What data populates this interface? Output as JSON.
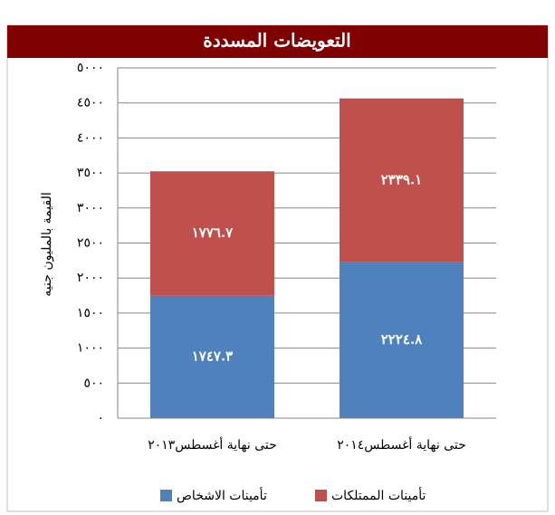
{
  "chart_data": {
    "type": "stacked_bar",
    "title": "التعويضات المسددة",
    "ylabel": "القيمة بالمليون جنيه",
    "categories": [
      "حتى نهاية أغسطس٢٠١٣",
      "حتى نهاية أغسطس٢٠١٤"
    ],
    "series": [
      {
        "name": "تأمينات الاشخاص",
        "color": "#4f81bd",
        "values": [
          1747.3,
          2224.8
        ],
        "value_labels": [
          "١٧٤٧.٣",
          "٢٢٢٤.٨"
        ]
      },
      {
        "name": "تأمينات الممتلكات",
        "color": "#c0504d",
        "values": [
          1776.7,
          2339.1
        ],
        "value_labels": [
          "١٧٧٦.٧",
          "٢٣٣٩.١"
        ]
      }
    ],
    "ylim": [
      0,
      5000
    ],
    "yticks": [
      {
        "value": 0,
        "label": "٠"
      },
      {
        "value": 500,
        "label": "٥٠٠"
      },
      {
        "value": 1000,
        "label": "١٠٠٠"
      },
      {
        "value": 1500,
        "label": "١٥٠٠"
      },
      {
        "value": 2000,
        "label": "٢٠٠٠"
      },
      {
        "value": 2500,
        "label": "٢٥٠٠"
      },
      {
        "value": 3000,
        "label": "٣٠٠٠"
      },
      {
        "value": 3500,
        "label": "٣٥٠٠"
      },
      {
        "value": 4000,
        "label": "٤٠٠٠"
      },
      {
        "value": 4500,
        "label": "٤٥٠٠"
      },
      {
        "value": 5000,
        "label": "٥٠٠٠"
      }
    ],
    "grid": true
  }
}
